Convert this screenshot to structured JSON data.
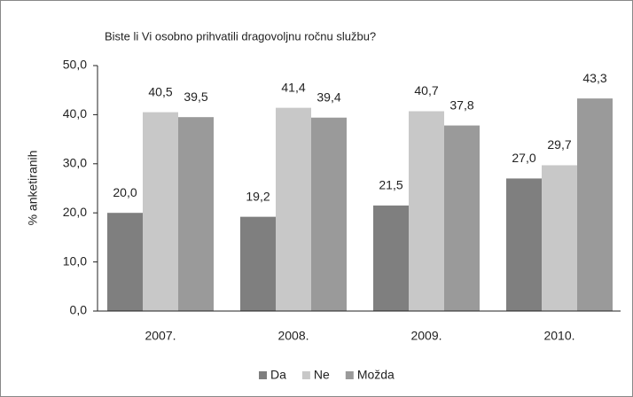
{
  "chart_data": {
    "type": "bar",
    "title": "Biste li Vi osobno prihvatili dragovoljnu ročnu službu?",
    "y_label": "% anketiranih",
    "categories": [
      "2007.",
      "2008.",
      "2009.",
      "2010."
    ],
    "series": [
      {
        "name": "Da",
        "color": "#7f7f7f",
        "values": [
          20.0,
          19.2,
          21.5,
          27.0
        ],
        "value_labels": [
          "20,0",
          "19,2",
          "21,5",
          "27,0"
        ]
      },
      {
        "name": "Ne",
        "color": "#c8c8c8",
        "values": [
          40.5,
          41.4,
          40.7,
          29.7
        ],
        "value_labels": [
          "40,5",
          "41,4",
          "40,7",
          "29,7"
        ]
      },
      {
        "name": "Možda",
        "color": "#9a9a9a",
        "values": [
          39.5,
          39.4,
          37.8,
          43.3
        ],
        "value_labels": [
          "39,5",
          "39,4",
          "37,8",
          "43,3"
        ]
      }
    ],
    "ylim": [
      0,
      50
    ],
    "yticks": [
      {
        "value": 0,
        "label": "0,0"
      },
      {
        "value": 10,
        "label": "10,0"
      },
      {
        "value": 20,
        "label": "20,0"
      },
      {
        "value": 30,
        "label": "30,0"
      },
      {
        "value": 40,
        "label": "40,0"
      },
      {
        "value": 50,
        "label": "50,0"
      }
    ],
    "legend": "bottom"
  }
}
